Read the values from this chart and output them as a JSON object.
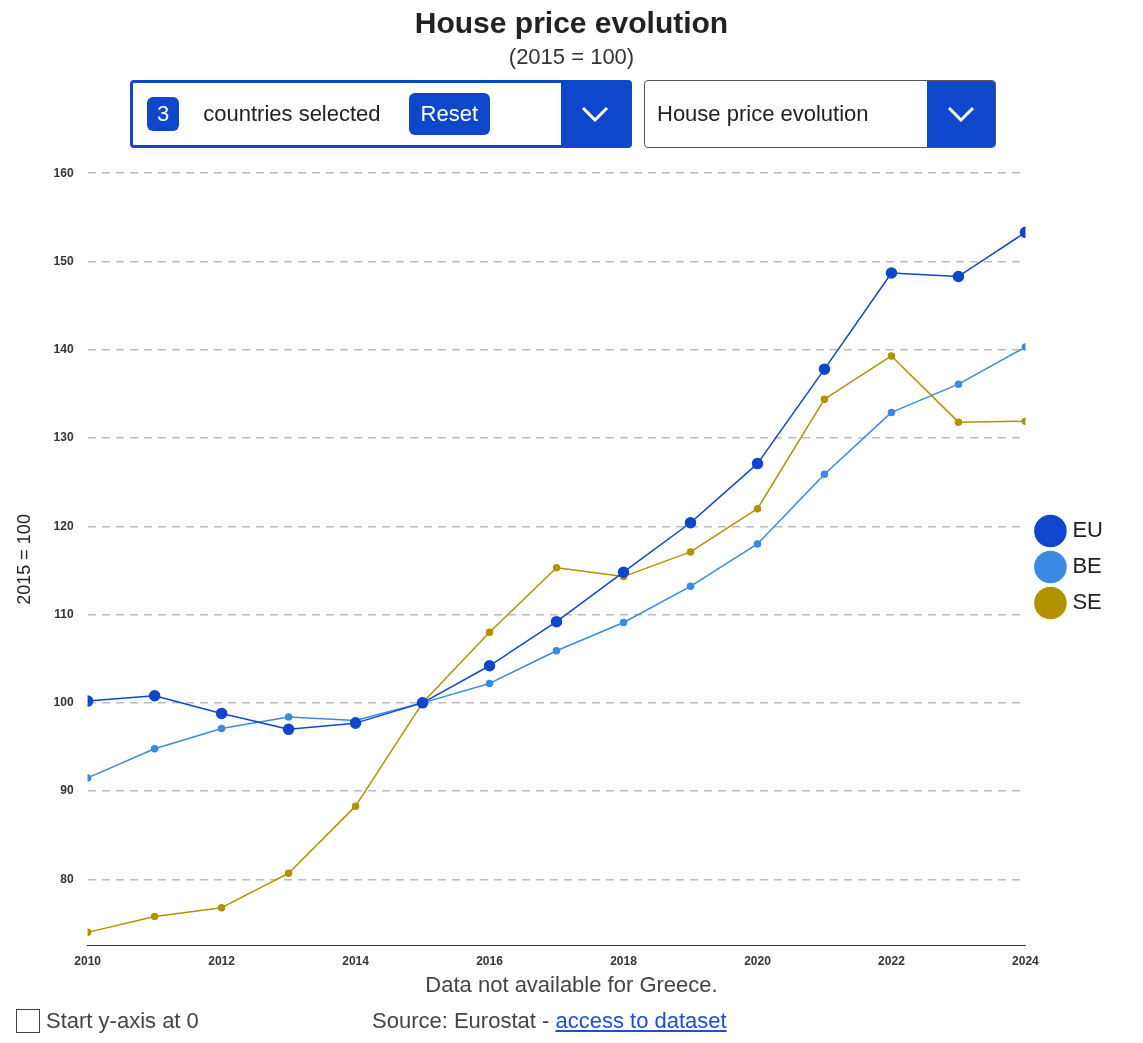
{
  "chart_data": {
    "type": "line",
    "title": "House price evolution",
    "subtitle": "(2015 = 100)",
    "ylabel": "2015 = 100",
    "x": [
      2010,
      2011,
      2012,
      2013,
      2014,
      2015,
      2016,
      2017,
      2018,
      2019,
      2020,
      2021,
      2022,
      2023,
      2024
    ],
    "series": [
      {
        "name": "EU",
        "color": "#0e47cb",
        "values": [
          100.2,
          100.8,
          98.8,
          97.0,
          97.7,
          100,
          104.2,
          109.2,
          114.8,
          120.4,
          127.1,
          137.8,
          148.7,
          148.3,
          153.3
        ]
      },
      {
        "name": "BE",
        "color": "#388ae2",
        "values": [
          91.5,
          94.8,
          97.1,
          98.4,
          98.0,
          100,
          102.2,
          105.9,
          109.1,
          113.2,
          118.0,
          125.9,
          132.9,
          136.1,
          140.3
        ]
      },
      {
        "name": "SE",
        "color": "#b39200",
        "values": [
          74.0,
          75.8,
          76.8,
          80.7,
          88.3,
          100,
          108.0,
          115.3,
          114.3,
          117.1,
          122.0,
          134.4,
          139.3,
          131.8,
          131.9
        ]
      }
    ],
    "xlim": [
      2010,
      2024
    ],
    "xticks": [
      2010,
      2012,
      2014,
      2016,
      2018,
      2020,
      2022,
      2024
    ],
    "ylim": [
      72.5,
      160
    ],
    "yticks": [
      80,
      90,
      100,
      110,
      120,
      130,
      140,
      150,
      160
    ],
    "grid": "y",
    "legend": "right",
    "marker": "circle",
    "line_style": "solid",
    "annotations": [
      "3",
      "countries selected",
      "Reset",
      "House price evolution",
      "Data not available for Greece.",
      "Source: Eurostat -",
      "access to dataset",
      "Start y-axis at 0"
    ]
  }
}
